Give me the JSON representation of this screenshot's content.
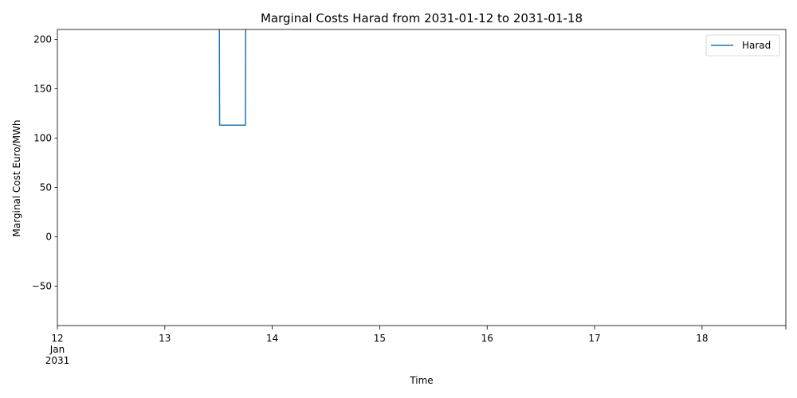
{
  "chart_data": {
    "type": "line",
    "title": "Marginal Costs Harad from 2031-01-12 to 2031-01-18",
    "xlabel": "Time",
    "ylabel": "Marginal Cost Euro/MWh",
    "xlim": [
      0,
      6.78
    ],
    "ylim": [
      -90,
      210
    ],
    "x_ticks": [
      {
        "value": 0,
        "lines": [
          "12",
          "Jan",
          "2031"
        ]
      },
      {
        "value": 1,
        "lines": [
          "13"
        ]
      },
      {
        "value": 2,
        "lines": [
          "14"
        ]
      },
      {
        "value": 3,
        "lines": [
          "15"
        ]
      },
      {
        "value": 4,
        "lines": [
          "16"
        ]
      },
      {
        "value": 5,
        "lines": [
          "17"
        ]
      },
      {
        "value": 6,
        "lines": [
          "18"
        ]
      }
    ],
    "y_ticks": [
      {
        "value": -50,
        "label": "−50"
      },
      {
        "value": 0,
        "label": "0"
      },
      {
        "value": 50,
        "label": "50"
      },
      {
        "value": 100,
        "label": "100"
      },
      {
        "value": 150,
        "label": "150"
      },
      {
        "value": 200,
        "label": "200"
      }
    ],
    "legend": {
      "position": "top-right",
      "entries": [
        "Harad"
      ]
    },
    "series": [
      {
        "name": "Harad",
        "color": "#1f77b4",
        "x": [
          1.5,
          1.51,
          1.75,
          1.76
        ],
        "y": [
          500,
          113,
          113,
          500
        ],
        "note": "values above 210 are clipped off the top of the plot"
      }
    ]
  }
}
